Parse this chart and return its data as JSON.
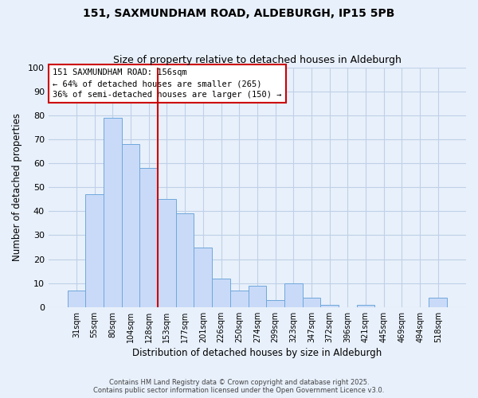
{
  "title1": "151, SAXMUNDHAM ROAD, ALDEBURGH, IP15 5PB",
  "title2": "Size of property relative to detached houses in Aldeburgh",
  "xlabel": "Distribution of detached houses by size in Aldeburgh",
  "ylabel": "Number of detached properties",
  "bar_labels": [
    "31sqm",
    "55sqm",
    "80sqm",
    "104sqm",
    "128sqm",
    "153sqm",
    "177sqm",
    "201sqm",
    "226sqm",
    "250sqm",
    "274sqm",
    "299sqm",
    "323sqm",
    "347sqm",
    "372sqm",
    "396sqm",
    "421sqm",
    "445sqm",
    "469sqm",
    "494sqm",
    "518sqm"
  ],
  "bar_values": [
    7,
    47,
    79,
    68,
    58,
    45,
    39,
    25,
    12,
    7,
    9,
    3,
    10,
    4,
    1,
    0,
    1,
    0,
    0,
    0,
    4
  ],
  "bar_color": "#c9daf8",
  "bar_edge_color": "#6fa8dc",
  "vline_color": "#cc0000",
  "vline_position": 4.5,
  "annotation_title": "151 SAXMUNDHAM ROAD: 156sqm",
  "annotation_line1": "← 64% of detached houses are smaller (265)",
  "annotation_line2": "36% of semi-detached houses are larger (150) →",
  "annotation_box_color": "#cc0000",
  "annotation_text_color": "#000000",
  "ylim": [
    0,
    100
  ],
  "yticks": [
    0,
    10,
    20,
    30,
    40,
    50,
    60,
    70,
    80,
    90,
    100
  ],
  "grid_color": "#c0d0e8",
  "background_color": "#e8f0fb",
  "footer1": "Contains HM Land Registry data © Crown copyright and database right 2025.",
  "footer2": "Contains public sector information licensed under the Open Government Licence v3.0."
}
